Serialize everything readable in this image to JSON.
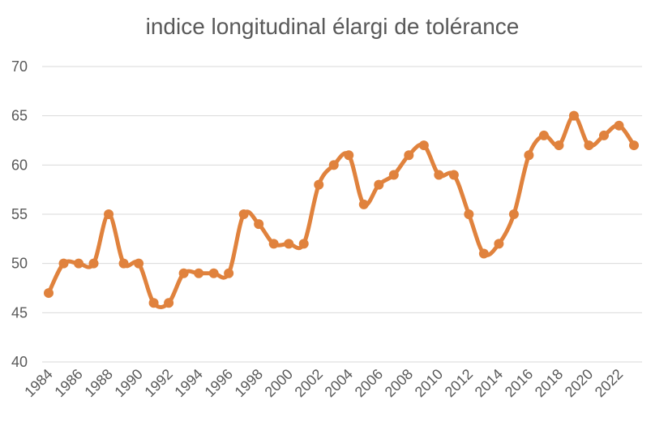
{
  "chart_data": {
    "type": "line",
    "title": "indice longitudinal élargi de tolérance",
    "xlabel": "",
    "ylabel": "",
    "ylim": [
      40,
      70
    ],
    "yticks": [
      40,
      45,
      50,
      55,
      60,
      65,
      70
    ],
    "xticks": [
      1984,
      1986,
      1988,
      1990,
      1992,
      1994,
      1996,
      1998,
      2000,
      2002,
      2004,
      2006,
      2008,
      2010,
      2012,
      2014,
      2016,
      2018,
      2020,
      2022
    ],
    "grid": true,
    "legend": "none",
    "color": "#E0823D",
    "x": [
      1984,
      1985,
      1986,
      1987,
      1988,
      1989,
      1990,
      1991,
      1992,
      1993,
      1994,
      1995,
      1996,
      1997,
      1998,
      1999,
      2000,
      2001,
      2002,
      2003,
      2004,
      2005,
      2006,
      2007,
      2008,
      2009,
      2010,
      2011,
      2012,
      2013,
      2014,
      2015,
      2016,
      2017,
      2018,
      2019,
      2020,
      2021,
      2022,
      2023
    ],
    "values": [
      47,
      50,
      50,
      50,
      55,
      50,
      50,
      46,
      46,
      49,
      49,
      49,
      49,
      55,
      54,
      52,
      52,
      52,
      58,
      60,
      61,
      56,
      58,
      59,
      61,
      62,
      59,
      59,
      55,
      51,
      52,
      55,
      61,
      63,
      62,
      65,
      62,
      63,
      64,
      62
    ]
  }
}
